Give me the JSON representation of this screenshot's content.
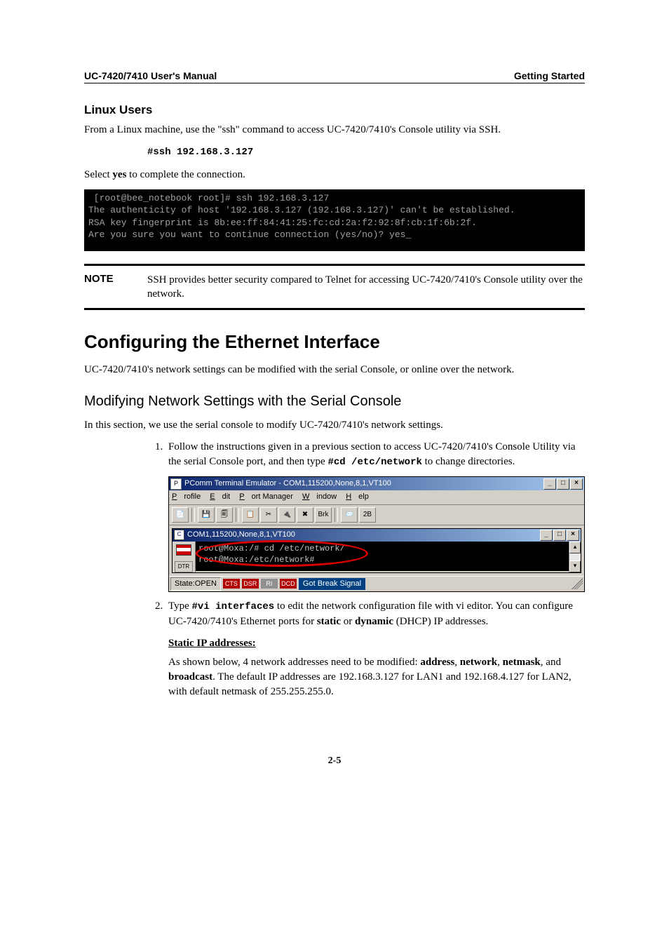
{
  "header": {
    "left": "UC-7420/7410 User's Manual",
    "right": "Getting Started"
  },
  "linux": {
    "heading": "Linux Users",
    "p1a": "From a Linux machine, use the \"ssh\" command to access UC-7420/7410's Console utility via SSH.",
    "cmd": "#ssh 192.168.3.127",
    "p2a": "Select ",
    "p2b": "yes",
    "p2c": " to complete the connection.",
    "terminal_lines": " [root@bee_notebook root]# ssh 192.168.3.127\nThe authenticity of host '192.168.3.127 (192.168.3.127)' can't be established.\nRSA key fingerprint is 8b:ee:ff:84:41:25:fc:cd:2a:f2:92:8f:cb:1f:6b:2f.\nAre you sure you want to continue connection (yes/no)? yes_"
  },
  "note": {
    "label": "NOTE",
    "text": "SSH provides better security compared to Telnet for accessing UC-7420/7410's Console utility over the network."
  },
  "config": {
    "h2": "Configuring the Ethernet Interface",
    "intro": "UC-7420/7410's network settings can be modified with the serial Console, or online over the network.",
    "h3": "Modifying Network Settings with the Serial Console",
    "lead": "In this section, we use the serial console to modify UC-7420/7410's network settings.",
    "li1a": "Follow the instructions given in a previous section to access UC-7420/7410's Console Utility via the serial Console port, and then type ",
    "li1b": "#cd /etc/network",
    "li1c": " to change directories.",
    "li2a": "Type ",
    "li2b": "#vi interfaces",
    "li2c": " to edit the network configuration file with vi editor. You can configure UC-7420/7410's Ethernet ports for ",
    "li2d": "static",
    "li2e": " or ",
    "li2f": "dynamic",
    "li2g": " (DHCP) IP addresses.",
    "static_h": "Static IP addresses:",
    "static_p_a": "As shown below, 4 network addresses need to be modified: ",
    "static_w1": "address",
    "static_s1": ", ",
    "static_w2": "network",
    "static_s2": ", ",
    "static_w3": "netmask",
    "static_s3": ", and ",
    "static_w4": "broadcast",
    "static_p_b": ". The default IP addresses are 192.168.3.127 for LAN1 and 192.168.4.127 for LAN2, with default netmask of 255.255.255.0."
  },
  "screenshot": {
    "outer_title": "PComm Terminal Emulator - COM1,115200,None,8,1,VT100",
    "menus": {
      "profile": "Profile",
      "edit": "Edit",
      "port": "Port Manager",
      "window": "Window",
      "help": "Help"
    },
    "toolbar_labels": {
      "brk": "Brk",
      "twob": "2B"
    },
    "inner_title": "COM1,115200,None,8,1,VT100",
    "term_line1": "root@Moxa:/# cd /etc/network/",
    "term_line2": "root@Moxa:/etc/network#",
    "dtr": "DTR",
    "status": {
      "state": "State:OPEN",
      "cts": "CTS",
      "dsr": "DSR",
      "ri": "RI",
      "dcd": "DCD",
      "msg": "Got Break Signal"
    },
    "winbtns": {
      "min": "_",
      "max": "□",
      "close": "×"
    },
    "scroll": {
      "up": "▴",
      "down": "▾"
    }
  },
  "page_number": "2-5"
}
